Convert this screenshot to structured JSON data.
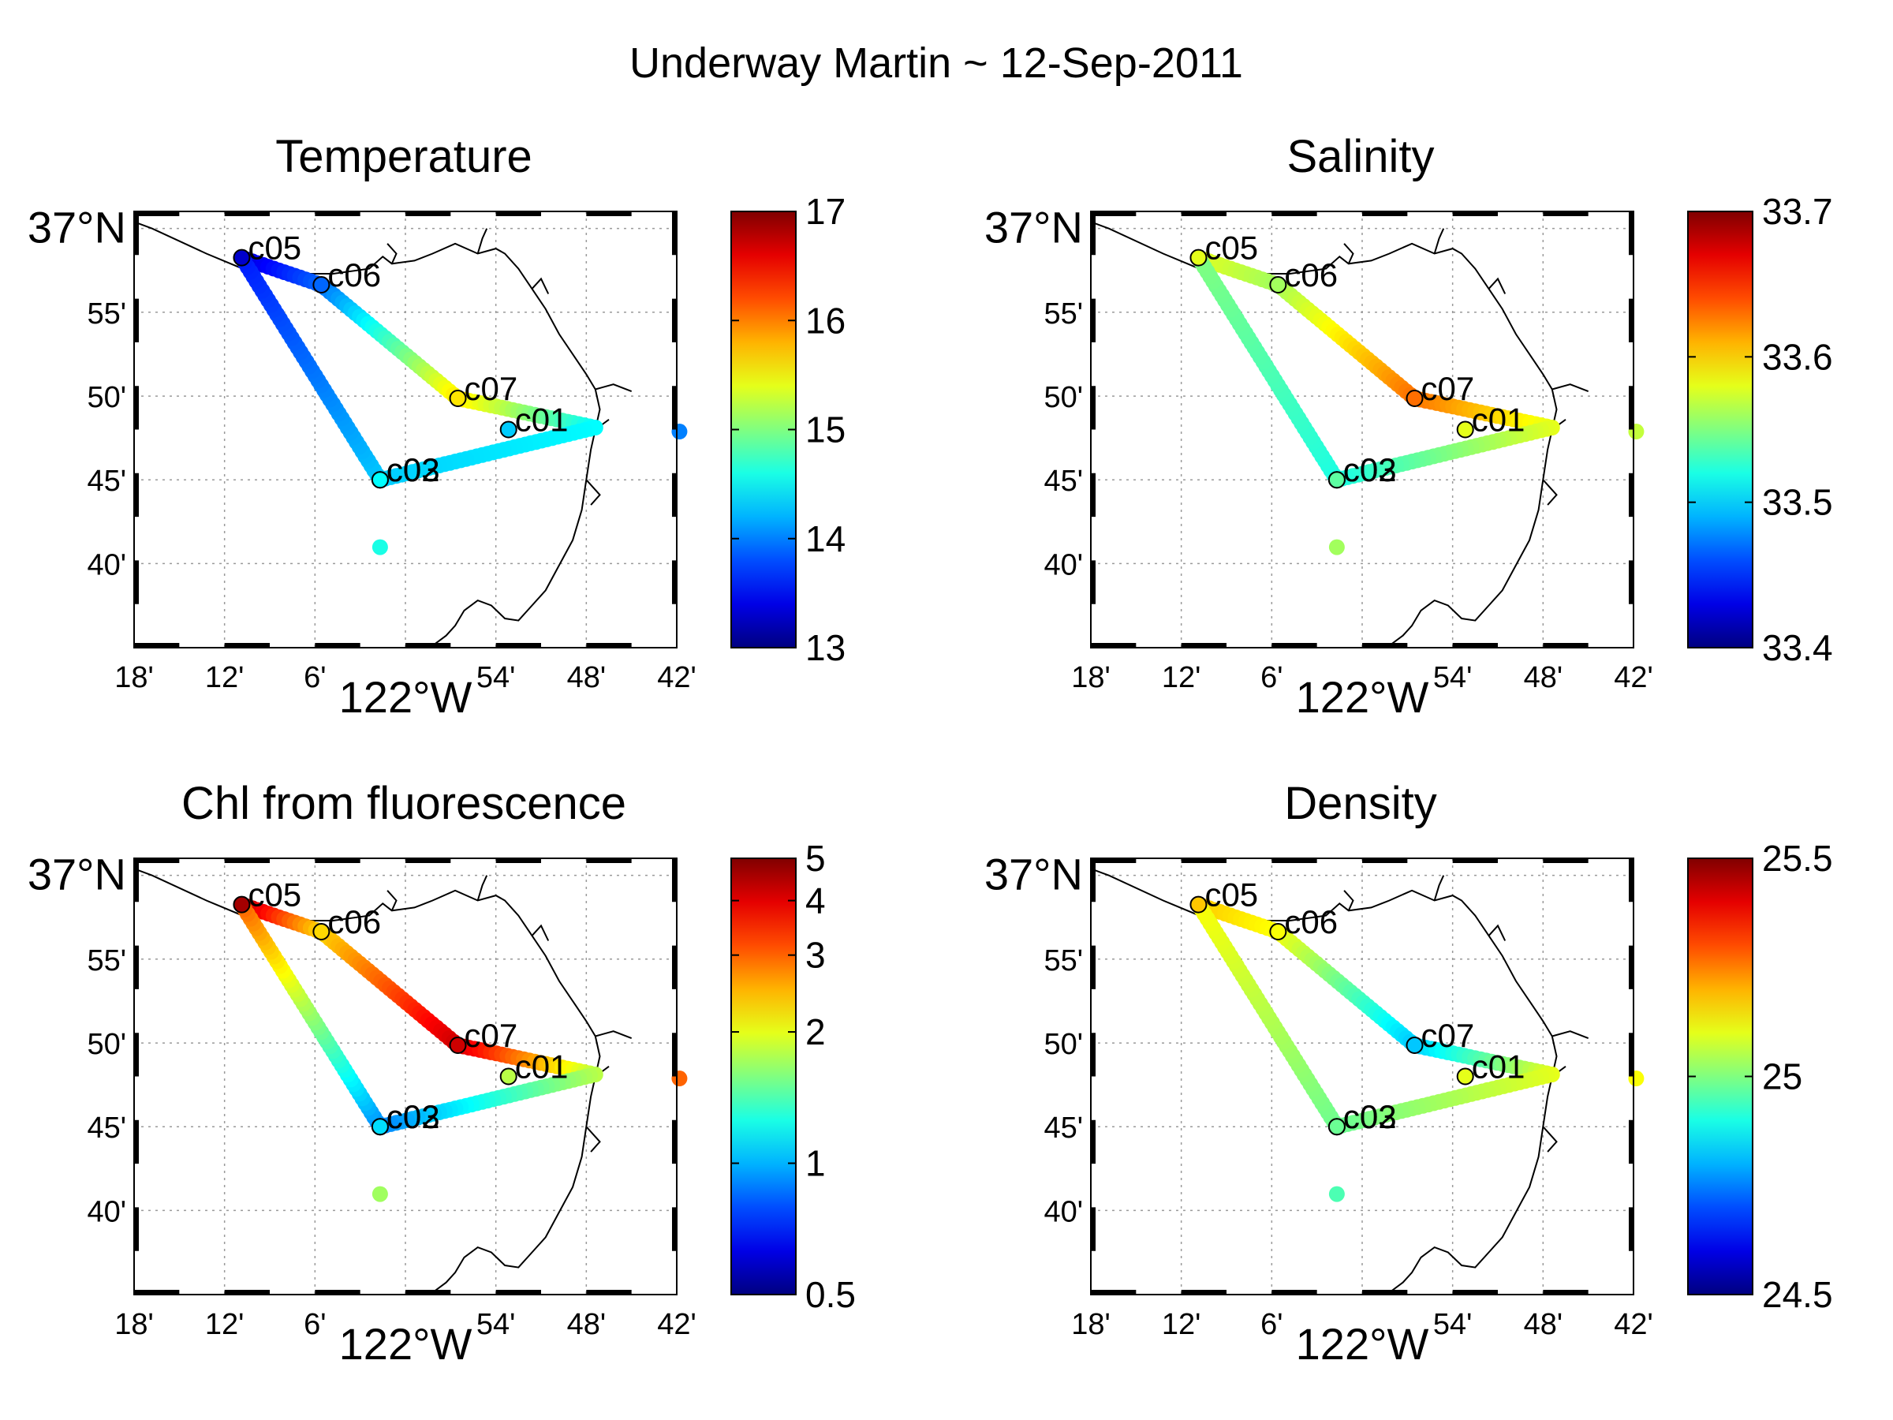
{
  "figure": {
    "title": "Underway Martin ~ 12-Sep-2011"
  },
  "map": {
    "lon_range": [
      -122.3,
      -121.7
    ],
    "lat_range": [
      36.583,
      37.017
    ],
    "xticks": [
      {
        "lon": -122.3,
        "label": "18'"
      },
      {
        "lon": -122.2,
        "label": "12'"
      },
      {
        "lon": -122.1,
        "label": "6'"
      },
      {
        "lon": -122.0,
        "label": "122°W",
        "big": true
      },
      {
        "lon": -121.9,
        "label": "54'"
      },
      {
        "lon": -121.8,
        "label": "48'"
      },
      {
        "lon": -121.7,
        "label": "42'"
      }
    ],
    "yticks": [
      {
        "lat": 37.0,
        "label": "37°N",
        "big": true
      },
      {
        "lat": 36.9167,
        "label": "55'"
      },
      {
        "lat": 36.8333,
        "label": "50'"
      },
      {
        "lat": 36.75,
        "label": "45'"
      },
      {
        "lat": 36.6667,
        "label": "40'"
      }
    ],
    "coastline": [
      [
        -122.41,
        37.04
      ],
      [
        -122.34,
        37.02
      ],
      [
        -122.28,
        37.0
      ],
      [
        -122.22,
        36.975
      ],
      [
        -122.18,
        36.96
      ],
      [
        -122.13,
        36.955
      ],
      [
        -122.08,
        36.955
      ],
      [
        -122.04,
        36.96
      ],
      [
        -122.025,
        36.972
      ],
      [
        -122.015,
        36.965
      ],
      [
        -121.99,
        36.968
      ],
      [
        -121.97,
        36.975
      ],
      [
        -121.945,
        36.985
      ],
      [
        -121.92,
        36.975
      ],
      [
        -121.9,
        36.98
      ],
      [
        -121.89,
        36.975
      ],
      [
        -121.875,
        36.96
      ],
      [
        -121.86,
        36.94
      ],
      [
        -121.845,
        36.92
      ],
      [
        -121.83,
        36.895
      ],
      [
        -121.815,
        36.875
      ],
      [
        -121.8,
        36.855
      ],
      [
        -121.79,
        36.84
      ],
      [
        -121.785,
        36.82
      ],
      [
        -121.79,
        36.8
      ],
      [
        -121.795,
        36.78
      ],
      [
        -121.8,
        36.75
      ],
      [
        -121.805,
        36.72
      ],
      [
        -121.815,
        36.69
      ],
      [
        -121.83,
        36.665
      ],
      [
        -121.845,
        36.64
      ],
      [
        -121.86,
        36.625
      ],
      [
        -121.875,
        36.61
      ],
      [
        -121.89,
        36.612
      ],
      [
        -121.905,
        36.625
      ],
      [
        -121.92,
        36.63
      ],
      [
        -121.935,
        36.62
      ],
      [
        -121.945,
        36.605
      ],
      [
        -121.955,
        36.595
      ],
      [
        -121.97,
        36.585
      ],
      [
        -121.98,
        36.56
      ]
    ],
    "coast_branches": [
      [
        [
          -122.015,
          36.965
        ],
        [
          -122.01,
          36.975
        ],
        [
          -122.02,
          36.985
        ]
      ],
      [
        [
          -121.92,
          36.975
        ],
        [
          -121.915,
          36.99
        ],
        [
          -121.91,
          37.0
        ]
      ],
      [
        [
          -121.86,
          36.94
        ],
        [
          -121.85,
          36.95
        ],
        [
          -121.842,
          36.935
        ]
      ],
      [
        [
          -121.79,
          36.84
        ],
        [
          -121.77,
          36.845
        ],
        [
          -121.75,
          36.838
        ]
      ],
      [
        [
          -121.79,
          36.8
        ],
        [
          -121.775,
          36.81
        ]
      ],
      [
        [
          -121.8,
          36.75
        ],
        [
          -121.785,
          36.735
        ],
        [
          -121.795,
          36.725
        ]
      ]
    ],
    "stations": [
      {
        "name": "c05",
        "lon": -122.181,
        "lat": 36.971
      },
      {
        "name": "c06",
        "lon": -122.093,
        "lat": 36.944
      },
      {
        "name": "c07",
        "lon": -121.942,
        "lat": 36.831
      },
      {
        "name": "c01",
        "lon": -121.886,
        "lat": 36.8
      },
      {
        "name": "c02",
        "lon": -122.028,
        "lat": 36.75
      },
      {
        "name": "c03",
        "lon": -122.028,
        "lat": 36.75
      }
    ],
    "track_vertices": [
      [
        -122.181,
        36.971
      ],
      [
        -122.093,
        36.944
      ],
      [
        -121.942,
        36.831
      ],
      [
        -121.79,
        36.802
      ],
      [
        -122.028,
        36.75
      ],
      [
        -122.181,
        36.971
      ]
    ],
    "offshore_point": {
      "lon": -122.028,
      "lat": 36.683
    },
    "edge_point": {
      "lon": -121.697,
      "lat": 36.798
    }
  },
  "chart_data": [
    {
      "type": "scatter",
      "title": "Temperature",
      "colorbar": {
        "range": [
          13,
          17
        ],
        "ticks": [
          13,
          14,
          15,
          16,
          17
        ],
        "scale": "linear",
        "tick_labels": [
          "13",
          "14",
          "15",
          "16",
          "17"
        ]
      },
      "track_values": [
        13.3,
        13.9,
        15.6,
        14.5,
        14.3,
        13.6
      ],
      "station_values": {
        "c05": 13.3,
        "c06": 13.9,
        "c07": 15.6,
        "c01": 14.3,
        "c02": 14.5,
        "c03": 14.5
      },
      "offshore_value": 14.6,
      "edge_value": 14.0
    },
    {
      "type": "scatter",
      "title": "Salinity",
      "colorbar": {
        "range": [
          33.4,
          33.7
        ],
        "ticks": [
          33.4,
          33.5,
          33.6,
          33.7
        ],
        "scale": "linear",
        "tick_labels": [
          "33.4",
          "33.5",
          "33.6",
          "33.7"
        ]
      },
      "track_values": [
        33.58,
        33.56,
        33.63,
        33.58,
        33.52,
        33.55
      ],
      "station_values": {
        "c05": 33.58,
        "c06": 33.56,
        "c07": 33.63,
        "c01": 33.58,
        "c02": 33.54,
        "c03": 33.54
      },
      "offshore_value": 33.56,
      "edge_value": 33.57
    },
    {
      "type": "scatter",
      "title": "Chl from fluorescence",
      "colorbar": {
        "range": [
          0.5,
          5
        ],
        "ticks": [
          0.5,
          1,
          2,
          3,
          4,
          5
        ],
        "scale": "log",
        "tick_labels": [
          "0.5",
          "1",
          "2",
          "3",
          "4",
          "5"
        ]
      },
      "track_values": [
        4.6,
        2.3,
        4.2,
        1.8,
        0.9,
        3.0
      ],
      "station_values": {
        "c05": 4.6,
        "c06": 2.3,
        "c07": 4.2,
        "c01": 1.8,
        "c02": 1.1,
        "c03": 1.1
      },
      "offshore_value": 1.7,
      "edge_value": 3.0
    },
    {
      "type": "scatter",
      "title": "Density",
      "colorbar": {
        "range": [
          24.5,
          25.5
        ],
        "ticks": [
          24.5,
          25,
          25.5
        ],
        "scale": "linear",
        "tick_labels": [
          "24.5",
          "25",
          "25.5"
        ]
      },
      "track_values": [
        25.18,
        25.12,
        24.82,
        25.1,
        24.98,
        25.12
      ],
      "station_values": {
        "c05": 25.18,
        "c06": 25.12,
        "c07": 24.82,
        "c01": 25.1,
        "c02": 24.98,
        "c03": 24.98
      },
      "offshore_value": 24.95,
      "edge_value": 25.12
    }
  ]
}
